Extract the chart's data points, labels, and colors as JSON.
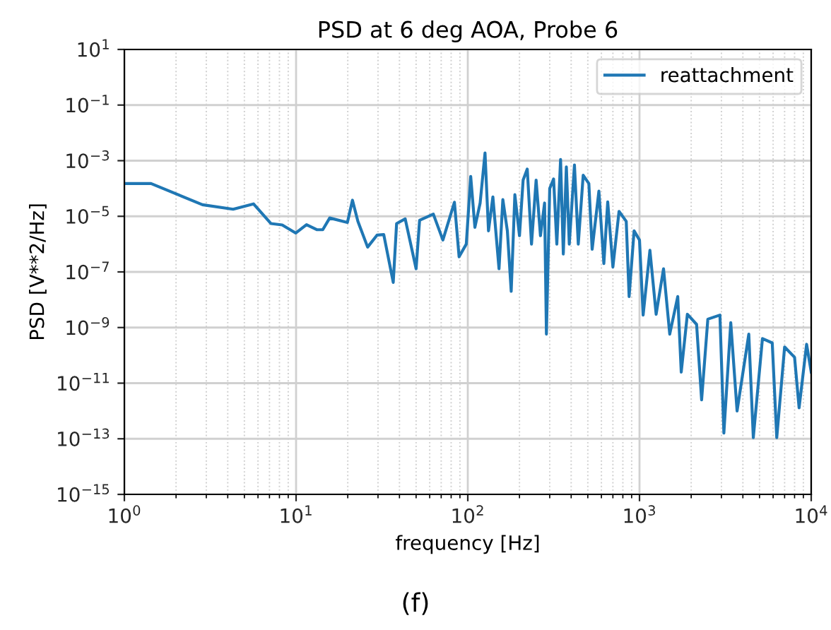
{
  "chart_data": {
    "type": "line",
    "title": "PSD at 6 deg AOA, Probe 6",
    "xlabel": "frequency [Hz]",
    "ylabel": "PSD [V**2/Hz]",
    "annotations": [
      "(f)"
    ],
    "log": "xy",
    "grid": true,
    "legend": "top right",
    "xlim": [
      1,
      10000
    ],
    "ylim": [
      1e-15,
      10
    ],
    "xticks": [
      {
        "value": 1,
        "label": "10$^{0}$"
      },
      {
        "value": 10,
        "label": "10$^{1}$"
      },
      {
        "value": 100,
        "label": "10$^{2}$"
      },
      {
        "value": 1000,
        "label": "10$^{3}$"
      },
      {
        "value": 10000,
        "label": "10$^{4}$"
      }
    ],
    "yticks": [
      {
        "value": 1e-15,
        "label": "10$^{−15}$"
      },
      {
        "value": 1e-13,
        "label": "10$^{−13}$"
      },
      {
        "value": 1e-11,
        "label": "10$^{−11}$"
      },
      {
        "value": 1e-09,
        "label": "10$^{−9}$"
      },
      {
        "value": 1e-07,
        "label": "10$^{−7}$"
      },
      {
        "value": 1e-05,
        "label": "10$^{−5}$"
      },
      {
        "value": 0.001,
        "label": "10$^{−3}$"
      },
      {
        "value": 0.1,
        "label": "10$^{−1}$"
      },
      {
        "value": 10,
        "label": "10$^{1}$"
      }
    ],
    "series": [
      {
        "name": "reattachment",
        "color": "#1f77b4",
        "x": [
          1,
          1.43,
          2.85,
          4.3,
          5.65,
          7.13,
          8.3,
          9.96,
          11.5,
          13.2,
          14.3,
          15.7,
          19.9,
          21.3,
          22.9,
          26.1,
          29.6,
          32.4,
          36.8,
          38.5,
          43.2,
          50,
          52.4,
          63,
          71.6,
          83.6,
          89,
          98,
          104,
          110,
          118,
          126,
          132,
          140,
          152,
          160,
          170,
          179,
          188,
          200,
          210,
          222,
          235,
          250,
          265,
          280,
          287,
          300,
          316,
          330,
          347,
          360,
          375,
          390,
          418,
          440,
          470,
          507,
          530,
          580,
          620,
          653,
          700,
          760,
          837,
          870,
          930,
          1000,
          1050,
          1150,
          1250,
          1380,
          1500,
          1670,
          1750,
          1900,
          2150,
          2300,
          2500,
          2940,
          3100,
          3400,
          3700,
          4330,
          4600,
          5200,
          5930,
          6300,
          7000,
          8000,
          8500,
          9400,
          10000
        ],
        "values": [
          0.00015,
          0.00015,
          2.6e-05,
          1.8e-05,
          2.8e-05,
          5.5e-06,
          4.9e-06,
          2.5e-06,
          5e-06,
          3.3e-06,
          3.3e-06,
          8.7e-06,
          6e-06,
          3.8e-05,
          6.6e-06,
          7.8e-07,
          2.1e-06,
          2.2e-06,
          4.2e-08,
          5.5e-06,
          8.1e-06,
          1.3e-07,
          7.2e-06,
          1.2e-05,
          1.4e-06,
          3.2e-05,
          3.5e-07,
          1e-06,
          0.00027,
          4e-06,
          3e-05,
          0.0019,
          3e-06,
          5e-05,
          1.3e-07,
          4e-05,
          3e-06,
          2e-08,
          6e-05,
          2e-06,
          0.0002,
          0.0005,
          1e-06,
          0.0002,
          2e-06,
          3e-05,
          5.8e-10,
          0.0001,
          0.00022,
          1e-06,
          0.0011,
          4.4e-07,
          0.0006,
          1e-06,
          0.0007,
          1e-06,
          0.0003,
          0.00015,
          6.5e-07,
          8e-05,
          2e-07,
          3.3e-05,
          1.5e-07,
          1.5e-05,
          6.6e-06,
          1.3e-08,
          3e-06,
          1.4e-06,
          2.8e-09,
          6e-07,
          3e-09,
          1.3e-07,
          5.8e-10,
          1.3e-08,
          2.5e-11,
          3e-09,
          1.3e-09,
          2.5e-12,
          2e-09,
          2.8e-09,
          1.6e-13,
          1.5e-09,
          1e-12,
          5.8e-10,
          1.1e-13,
          4e-10,
          2.8e-10,
          1.1e-13,
          2e-10,
          8.5e-11,
          1.3e-12,
          2.5e-10,
          2.5e-11
        ]
      }
    ]
  }
}
